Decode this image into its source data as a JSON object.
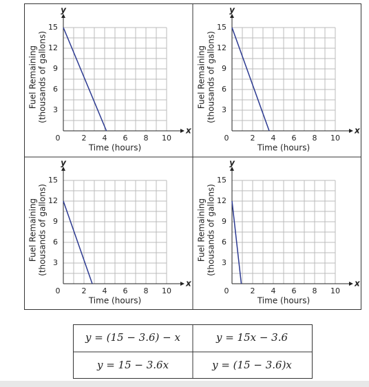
{
  "chart_data": [
    {
      "type": "line",
      "x": [
        0,
        4.17
      ],
      "values": [
        15,
        0
      ],
      "color": "#2b3990",
      "xlim": [
        0,
        10
      ],
      "ylim": [
        0,
        15
      ],
      "xticks": [
        0,
        2,
        4,
        6,
        8,
        10
      ],
      "yticks": [
        3,
        6,
        9,
        12,
        15
      ],
      "x_grid_step": 1,
      "y_grid_step": 1.5,
      "grid": true,
      "xlabel": "Time (hours)",
      "ylabel": [
        "Fuel Remaining",
        "(thousands of gallons)"
      ],
      "x_axis_name": "x",
      "y_axis_name": "y"
    },
    {
      "type": "line",
      "x": [
        0,
        3.6
      ],
      "values": [
        15,
        0
      ],
      "color": "#2b3990",
      "xlim": [
        0,
        10
      ],
      "ylim": [
        0,
        15
      ],
      "xticks": [
        0,
        2,
        4,
        6,
        8,
        10
      ],
      "yticks": [
        3,
        6,
        9,
        12,
        15
      ],
      "x_grid_step": 1,
      "y_grid_step": 1.5,
      "grid": true,
      "xlabel": "Time (hours)",
      "ylabel": [
        "Fuel Remaining",
        "(thousands of gallons)"
      ],
      "x_axis_name": "x",
      "y_axis_name": "y"
    },
    {
      "type": "line",
      "x": [
        0,
        2.8
      ],
      "values": [
        12,
        0
      ],
      "color": "#2b3990",
      "xlim": [
        0,
        10
      ],
      "ylim": [
        0,
        15
      ],
      "xticks": [
        0,
        2,
        4,
        6,
        8,
        10
      ],
      "yticks": [
        3,
        6,
        9,
        12,
        15
      ],
      "x_grid_step": 1,
      "y_grid_step": 1.5,
      "grid": true,
      "xlabel": "Time (hours)",
      "ylabel": [
        "Fuel Remaining",
        "(thousands of gallons)"
      ],
      "x_axis_name": "x",
      "y_axis_name": "y"
    },
    {
      "type": "line",
      "x": [
        0,
        0.9
      ],
      "values": [
        12,
        0
      ],
      "color": "#2b3990",
      "xlim": [
        0,
        10
      ],
      "ylim": [
        0,
        15
      ],
      "xticks": [
        0,
        2,
        4,
        6,
        8,
        10
      ],
      "yticks": [
        3,
        6,
        9,
        12,
        15
      ],
      "x_grid_step": 1,
      "y_grid_step": 1.5,
      "grid": true,
      "xlabel": "Time (hours)",
      "ylabel": [
        "Fuel Remaining",
        "(thousands of gallons)"
      ],
      "x_axis_name": "x",
      "y_axis_name": "y"
    }
  ],
  "table": {
    "rows": [
      [
        "y = (15 − 3.6) − x",
        "y = 15x − 3.6"
      ],
      [
        "y = 15 − 3.6x",
        "y = (15 − 3.6)x"
      ]
    ]
  }
}
